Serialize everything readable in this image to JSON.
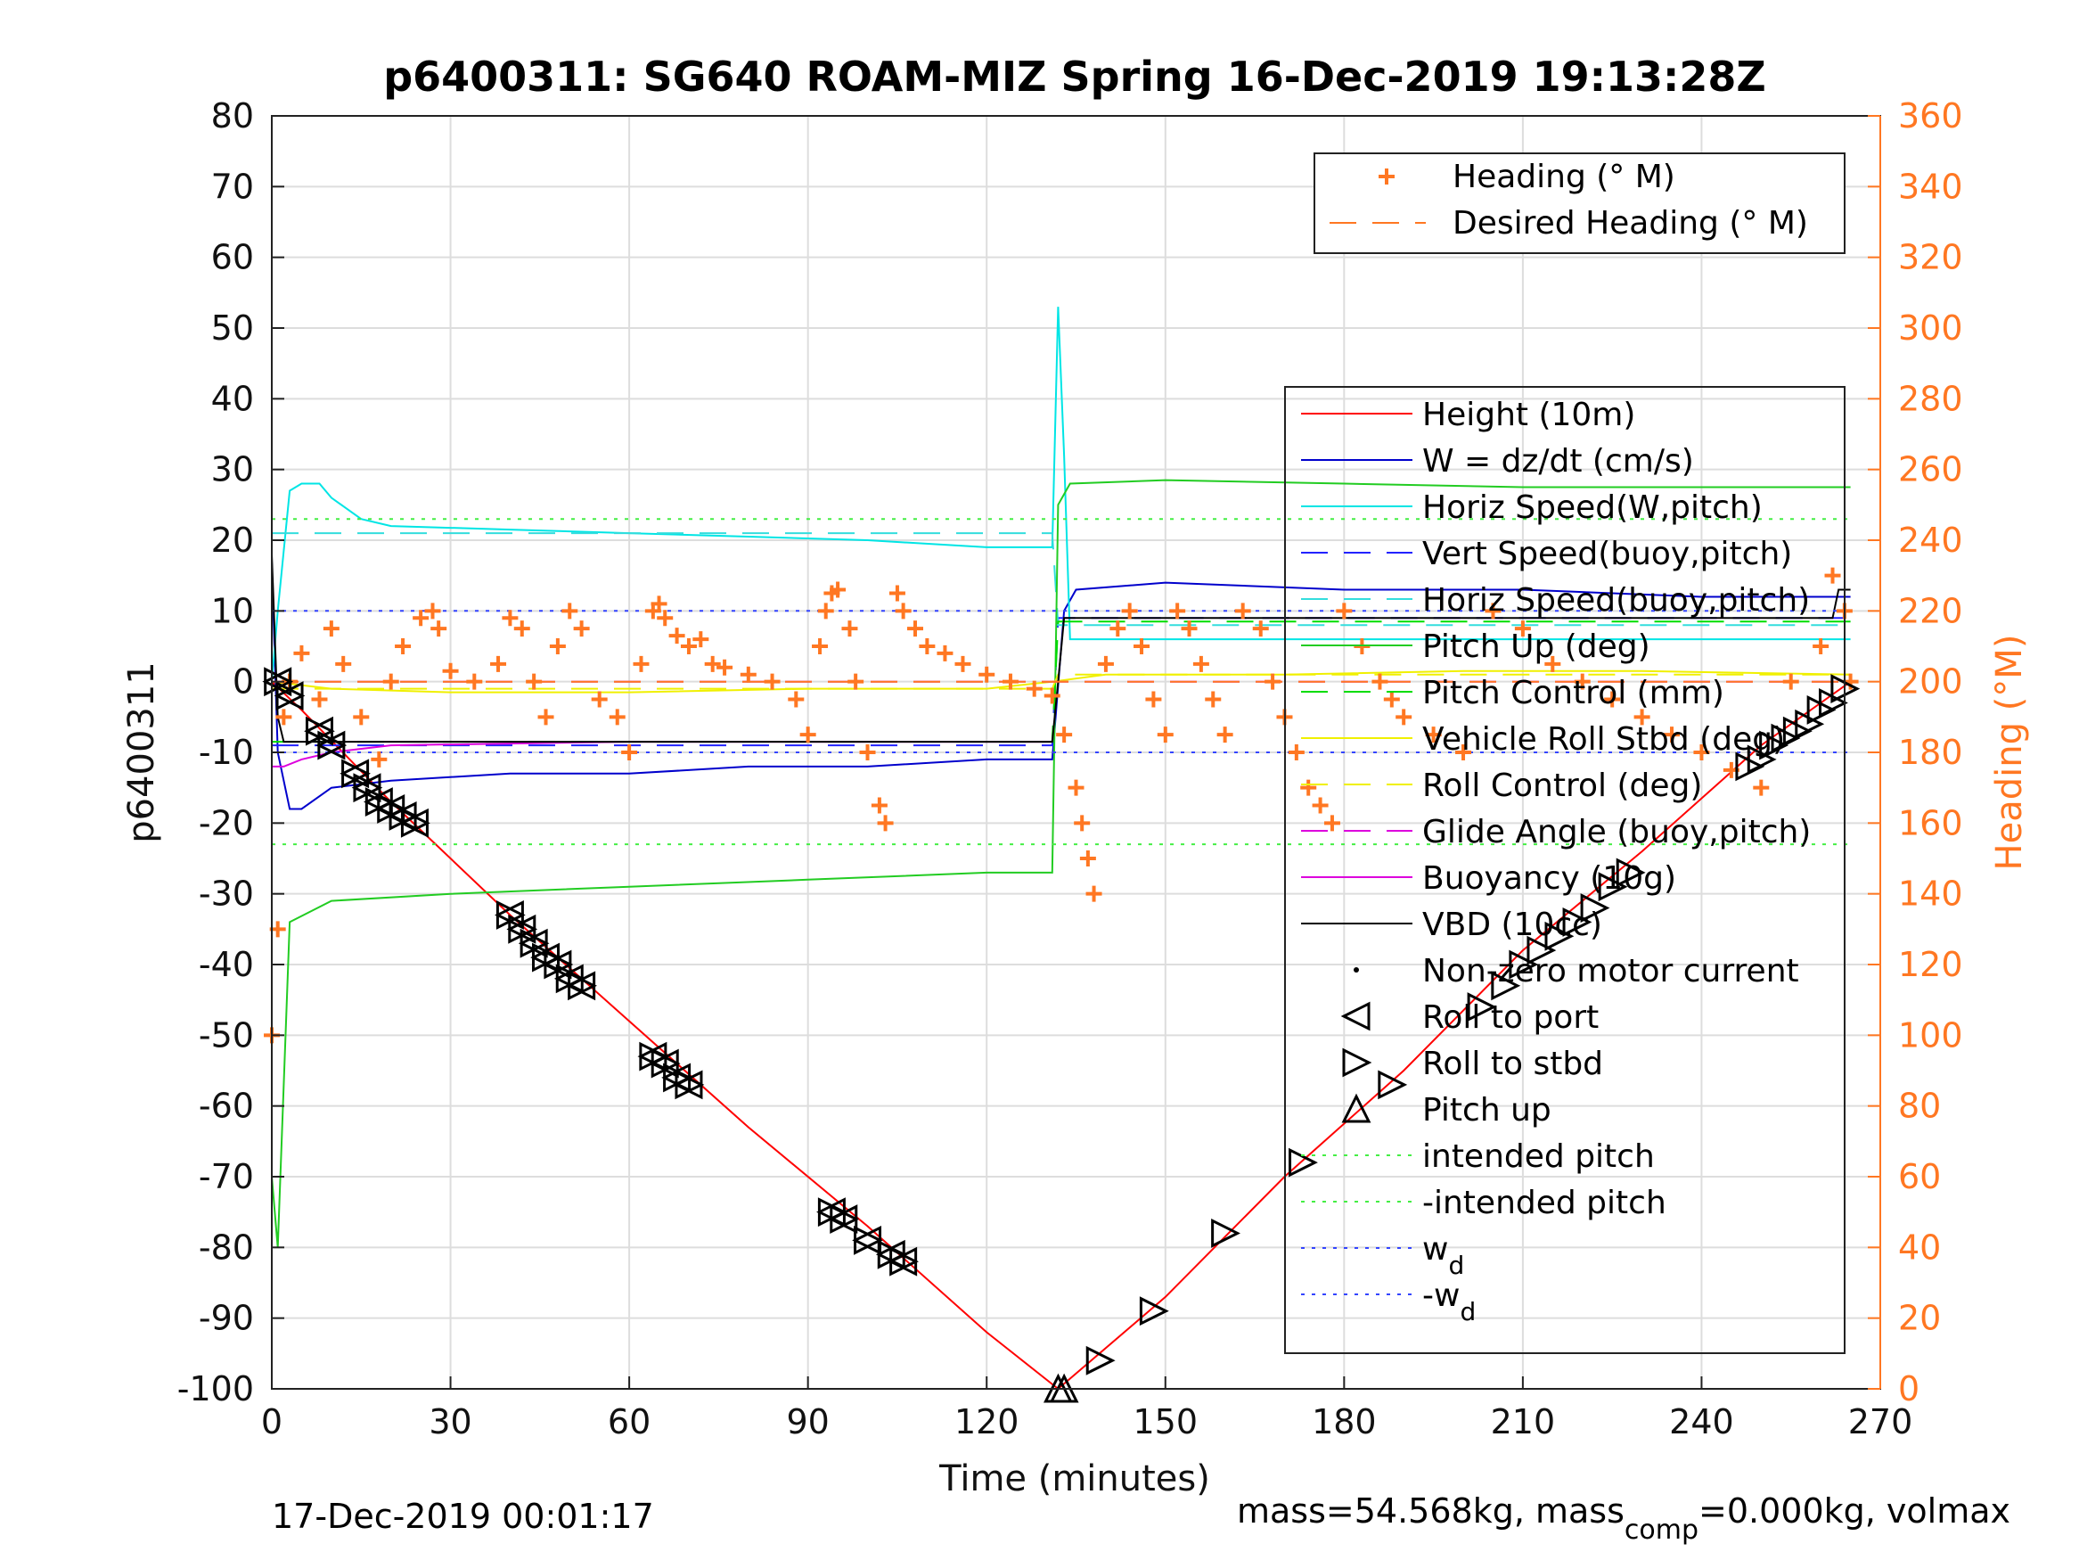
{
  "chart_data": {
    "type": "line",
    "title": "p6400311: SG640 ROAM-MIZ Spring 16-Dec-2019 19:13:28Z",
    "xlabel": "Time (minutes)",
    "ylabel_left": "p6400311",
    "ylabel_right": "Heading (°M)",
    "xlim": [
      0,
      270
    ],
    "ylim_left": [
      -100,
      80
    ],
    "ylim_right": [
      0,
      360
    ],
    "x_ticks": [
      "0",
      "30",
      "60",
      "90",
      "120",
      "150",
      "180",
      "210",
      "240",
      "270"
    ],
    "y_left_ticks": [
      "80",
      "70",
      "60",
      "50",
      "40",
      "30",
      "20",
      "10",
      "0",
      "-10",
      "-20",
      "-30",
      "-40",
      "-50",
      "-60",
      "-70",
      "-80",
      "-90",
      "-100"
    ],
    "y_right_ticks": [
      "360",
      "340",
      "320",
      "300",
      "280",
      "260",
      "240",
      "220",
      "200",
      "180",
      "160",
      "140",
      "120",
      "100",
      "80",
      "60",
      "40",
      "20",
      "0"
    ],
    "grid": true,
    "colors": {
      "height": "#ff0000",
      "w": "#0000cc",
      "horiz_speed_w": "#00e5e5",
      "vert_speed_buoy": "#2222ff",
      "horiz_speed_buoy": "#33dddd",
      "pitch_up": "#22cc22",
      "pitch_control": "#00dd00",
      "vehicle_roll": "#f0f000",
      "roll_control": "#f0f000",
      "glide_angle": "#dd00dd",
      "buoyancy": "#dd00dd",
      "vbd": "#000000",
      "heading": "#ff7722",
      "grid": "#dddddd"
    },
    "legend_top": {
      "placement": "top-right",
      "entries": [
        "Heading (° M)",
        "Desired Heading (° M)"
      ]
    },
    "legend_main": {
      "placement": "right",
      "entries": [
        "Height (10m)",
        "W = dz/dt (cm/s)",
        "Horiz Speed(W,pitch)",
        "Vert Speed(buoy,pitch)",
        "Horiz Speed(buoy,pitch)",
        "Pitch Up (deg)",
        "Pitch Control (mm)",
        "Vehicle Roll Stbd (deg)",
        "Roll Control (deg)",
        "Glide Angle (buoy,pitch)",
        "Buoyancy (10g)",
        "VBD (10cc)",
        "Non-zero motor current",
        "Roll to port",
        "Roll to stbd",
        "Pitch up",
        "intended pitch",
        "-intended pitch",
        "w",
        "-w"
      ],
      "subscript": "d"
    },
    "series": [
      {
        "name": "Height (10m)",
        "axis": "left",
        "x": [
          0,
          5,
          20,
          40,
          60,
          80,
          100,
          120,
          132,
          150,
          170,
          190,
          210,
          230,
          250,
          265
        ],
        "y": [
          0,
          -4,
          -17,
          -33,
          -48,
          -63,
          -77,
          -92,
          -100,
          -87,
          -70,
          -55,
          -38,
          -24,
          -9,
          0
        ]
      },
      {
        "name": "W = dz/dt (cm/s)",
        "axis": "left",
        "x": [
          0,
          1,
          3,
          5,
          10,
          20,
          40,
          60,
          80,
          100,
          120,
          131,
          133,
          135,
          150,
          180,
          210,
          240,
          265
        ],
        "y": [
          17,
          -10,
          -18,
          -18,
          -15,
          -14,
          -13,
          -13,
          -12,
          -12,
          -11,
          -11,
          10,
          13,
          14,
          13,
          13,
          12,
          12
        ]
      },
      {
        "name": "Horiz Speed(W,pitch)",
        "axis": "left",
        "x": [
          0,
          1,
          3,
          5,
          8,
          10,
          15,
          20,
          40,
          60,
          80,
          100,
          120,
          131,
          132,
          133,
          134,
          265
        ],
        "y": [
          0,
          10,
          27,
          28,
          28,
          26,
          23,
          22,
          21.5,
          21,
          20.5,
          20,
          19,
          19,
          53,
          32,
          6,
          6
        ]
      },
      {
        "name": "Vert Speed(buoy,pitch)",
        "axis": "left",
        "x": [
          0,
          131,
          132,
          265
        ],
        "y": [
          -9,
          -9,
          9,
          9
        ]
      },
      {
        "name": "Horiz Speed(buoy,pitch)",
        "axis": "left",
        "x": [
          0,
          131,
          132,
          265
        ],
        "y": [
          21,
          21,
          8,
          8
        ]
      },
      {
        "name": "Pitch Up (deg)",
        "axis": "left",
        "x": [
          0,
          1,
          3,
          10,
          30,
          60,
          90,
          120,
          131,
          132,
          134,
          150,
          180,
          210,
          240,
          265
        ],
        "y": [
          -70,
          -80,
          -34,
          -31,
          -30,
          -29,
          -28,
          -27,
          -27,
          25,
          28,
          28.5,
          28,
          27.5,
          27.5,
          27.5
        ]
      },
      {
        "name": "Pitch Control (mm)",
        "axis": "left",
        "x": [
          0,
          131,
          132,
          265
        ],
        "y": [
          -8.5,
          -8.5,
          8.5,
          8.5
        ]
      },
      {
        "name": "Vehicle Roll Stbd (deg)",
        "axis": "left",
        "x": [
          0,
          10,
          30,
          60,
          90,
          120,
          131,
          140,
          170,
          200,
          230,
          265
        ],
        "y": [
          0,
          -1,
          -1.5,
          -1.5,
          -1,
          -1,
          0,
          1,
          1,
          1.5,
          1.5,
          1
        ]
      },
      {
        "name": "Roll Control (deg)",
        "axis": "left",
        "x": [
          0,
          131,
          132,
          265
        ],
        "y": [
          -1,
          -1,
          1,
          1
        ]
      },
      {
        "name": "Glide Angle (buoy,pitch)",
        "axis": "left",
        "x": [
          0,
          131,
          132,
          265
        ],
        "y": [
          0,
          0,
          0,
          0
        ]
      },
      {
        "name": "Buoyancy (10g)",
        "axis": "left",
        "x": [
          0,
          2,
          5,
          10,
          20,
          60,
          131
        ],
        "y": [
          -12,
          -12,
          -11,
          -10,
          -9,
          -8.5,
          -8.5
        ]
      },
      {
        "name": "VBD (10cc)",
        "axis": "left",
        "x": [
          0,
          1,
          2,
          131,
          132,
          133,
          262,
          263,
          265
        ],
        "y": [
          18,
          -5,
          -8.5,
          -8.5,
          0,
          9,
          9,
          13,
          13
        ]
      },
      {
        "name": "intended pitch",
        "axis": "left",
        "x": [
          0,
          265
        ],
        "y": [
          23,
          23
        ]
      },
      {
        "name": "-intended pitch",
        "axis": "left",
        "x": [
          0,
          265
        ],
        "y": [
          -23,
          -23
        ]
      },
      {
        "name": "w",
        "axis": "left",
        "x": [
          0,
          265
        ],
        "y": [
          10,
          10
        ]
      },
      {
        "name": "-w",
        "axis": "left",
        "x": [
          0,
          265
        ],
        "y": [
          -10,
          -10
        ]
      },
      {
        "name": "Desired Heading (° M)",
        "axis": "right",
        "x": [
          0,
          265
        ],
        "y": [
          200,
          200
        ]
      },
      {
        "name": "Heading (° M)",
        "axis": "right",
        "x": [
          0,
          1,
          2,
          3,
          5,
          8,
          10,
          12,
          15,
          18,
          20,
          22,
          25,
          27,
          28,
          30,
          34,
          38,
          40,
          42,
          44,
          46,
          48,
          50,
          52,
          55,
          58,
          60,
          62,
          64,
          65,
          66,
          68,
          70,
          72,
          74,
          76,
          80,
          84,
          88,
          90,
          92,
          93,
          94,
          95,
          97,
          98,
          100,
          102,
          103,
          105,
          106,
          108,
          110,
          113,
          116,
          120,
          124,
          128,
          131,
          133,
          135,
          136,
          137,
          138,
          140,
          142,
          144,
          146,
          148,
          150,
          152,
          154,
          156,
          158,
          160,
          163,
          166,
          168,
          170,
          172,
          174,
          176,
          178,
          180,
          183,
          186,
          188,
          190,
          195,
          200,
          205,
          210,
          215,
          220,
          225,
          230,
          235,
          240,
          245,
          250,
          255,
          260,
          262,
          264,
          265
        ],
        "y": [
          100,
          130,
          190,
          200,
          208,
          195,
          215,
          205,
          190,
          178,
          200,
          210,
          218,
          220,
          215,
          203,
          200,
          205,
          218,
          215,
          200,
          190,
          210,
          220,
          215,
          195,
          190,
          180,
          205,
          220,
          222,
          218,
          213,
          210,
          212,
          205,
          204,
          202,
          200,
          195,
          185,
          210,
          220,
          225,
          226,
          215,
          200,
          180,
          165,
          160,
          225,
          220,
          215,
          210,
          208,
          205,
          202,
          200,
          198,
          196,
          185,
          170,
          160,
          150,
          140,
          205,
          215,
          220,
          210,
          195,
          185,
          220,
          215,
          205,
          195,
          185,
          220,
          215,
          200,
          190,
          180,
          170,
          165,
          160,
          220,
          210,
          200,
          195,
          190,
          185,
          180,
          220,
          215,
          205,
          200,
          195,
          190,
          185,
          180,
          175,
          170,
          200,
          210,
          230,
          220,
          200
        ]
      }
    ],
    "markers": {
      "roll_to_port": {
        "x": [
          1,
          3,
          8,
          10,
          14,
          16,
          18,
          20,
          22,
          24,
          40,
          42,
          44,
          46,
          48,
          50,
          52,
          64,
          66,
          68,
          70,
          94,
          96,
          100,
          104,
          106
        ],
        "y": [
          0,
          -2,
          -7,
          -9,
          -13,
          -15,
          -17,
          -18,
          -19,
          -20,
          -33,
          -35,
          -37,
          -39,
          -40,
          -42,
          -43,
          -53,
          -54,
          -56,
          -57,
          -75,
          -76,
          -79,
          -81,
          -82
        ]
      },
      "roll_to_stbd": {
        "x": [
          1,
          3,
          8,
          10,
          14,
          16,
          18,
          20,
          22,
          24,
          40,
          42,
          44,
          46,
          48,
          50,
          52,
          64,
          66,
          68,
          70,
          94,
          96,
          100,
          104,
          106,
          139,
          148,
          160,
          173,
          188,
          203,
          207,
          210,
          213,
          216,
          219,
          222,
          225,
          228,
          248,
          250,
          252,
          254,
          256,
          258,
          260,
          262,
          264
        ],
        "y": [
          0,
          -2,
          -7,
          -9,
          -13,
          -15,
          -17,
          -18,
          -19,
          -20,
          -33,
          -35,
          -37,
          -39,
          -40,
          -42,
          -43,
          -53,
          -54,
          -56,
          -57,
          -75,
          -76,
          -79,
          -81,
          -82,
          -96,
          -89,
          -78,
          -68,
          -57,
          -46,
          -43,
          -40,
          -38,
          -36,
          -34,
          -32,
          -29,
          -27,
          -12,
          -11,
          -9,
          -8,
          -7,
          -6,
          -4,
          -3,
          -1
        ]
      },
      "pitch_up": {
        "x": [
          132,
          133
        ],
        "y": [
          -100,
          -100
        ]
      }
    },
    "footer_left": "17-Dec-2019 00:01:17",
    "footer_right": {
      "pre": "mass=54.568kg, mass",
      "sub": "comp",
      "post": "=0.000kg, volmax"
    }
  }
}
